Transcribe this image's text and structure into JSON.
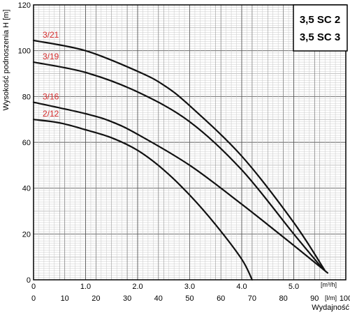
{
  "chart_data": {
    "type": "line",
    "ylabel": "Wysokość podnoszenia H [m]",
    "xlabel": "Wydajność",
    "x_unit_primary": "[m³/h]",
    "x_unit_secondary": "[l/m]",
    "x_ticks_primary": [
      "0",
      "1.0",
      "2.0",
      "3.0",
      "4.0",
      "5.0"
    ],
    "x_ticks_secondary": [
      "0",
      "10",
      "20",
      "30",
      "40",
      "50",
      "60",
      "70",
      "80",
      "90",
      "100"
    ],
    "y_ticks": [
      "0",
      "20",
      "40",
      "60",
      "80",
      "100",
      "120"
    ],
    "xlim": [
      0,
      6
    ],
    "ylim": [
      0,
      120
    ],
    "grid": true,
    "legend_box": [
      "3,5 SC 2",
      "3,5 SC 3"
    ],
    "series": [
      {
        "name": "3/21",
        "x": [
          0,
          1,
          2,
          2.5,
          3,
          4,
          5,
          5.6
        ],
        "y": [
          104.5,
          100,
          91,
          85,
          76,
          54,
          25,
          4
        ]
      },
      {
        "name": "3/19",
        "x": [
          0,
          1,
          2,
          3,
          4,
          5,
          5.55
        ],
        "y": [
          95,
          90.5,
          82,
          69,
          48,
          20,
          5
        ]
      },
      {
        "name": "3/16",
        "x": [
          0,
          1,
          1.5,
          2,
          3,
          4,
          5,
          5.65
        ],
        "y": [
          77.5,
          72.5,
          69,
          63.5,
          50,
          33,
          15,
          3
        ]
      },
      {
        "name": "2/12",
        "x": [
          0,
          0.5,
          1,
          1.5,
          2,
          2.5,
          3,
          3.5,
          4,
          4.2
        ],
        "y": [
          70,
          68.5,
          65.5,
          62,
          56.5,
          48,
          37,
          24,
          9,
          0
        ]
      }
    ]
  }
}
